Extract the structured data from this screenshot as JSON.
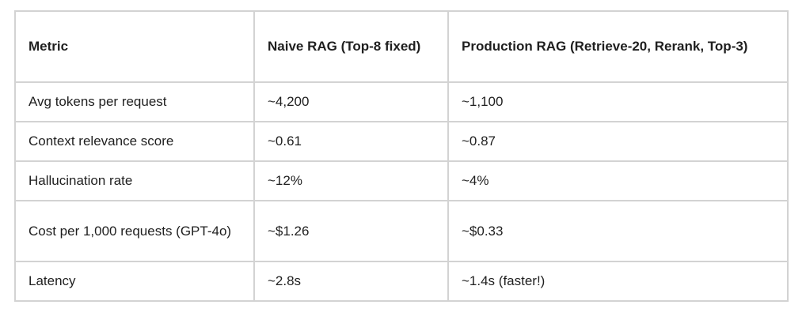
{
  "table": {
    "header": [
      "Metric",
      "Naive RAG (Top-8 fixed)",
      "Production RAG (Retrieve-20, Rerank, Top-3)"
    ],
    "rows": [
      [
        "Avg tokens per request",
        "~4,200",
        "~1,100"
      ],
      [
        "Context relevance score",
        "~0.61",
        "~0.87"
      ],
      [
        "Hallucination rate",
        "~12%",
        "~4%"
      ],
      [
        "Cost per 1,000 requests (GPT-4o)",
        "~$1.26",
        "~$0.33"
      ],
      [
        "Latency",
        "~2.8s",
        "~1.4s (faster!)"
      ]
    ]
  }
}
